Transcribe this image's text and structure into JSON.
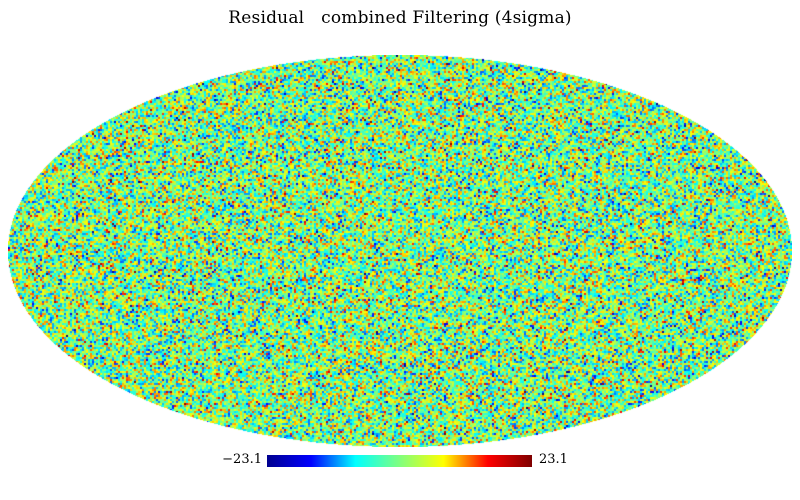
{
  "title": "Residual   combined Filtering (4sigma)",
  "projection": "mollweide",
  "colormap": {
    "name": "jet",
    "min_label": "−23.1",
    "max_label": "23.1",
    "min_value": -23.1,
    "max_value": 23.1,
    "stops": [
      "#00008f",
      "#0000ff",
      "#00ffff",
      "#7fff7f",
      "#ffff00",
      "#ff0000",
      "#7f0000"
    ]
  },
  "background_color": "#ffffff"
}
